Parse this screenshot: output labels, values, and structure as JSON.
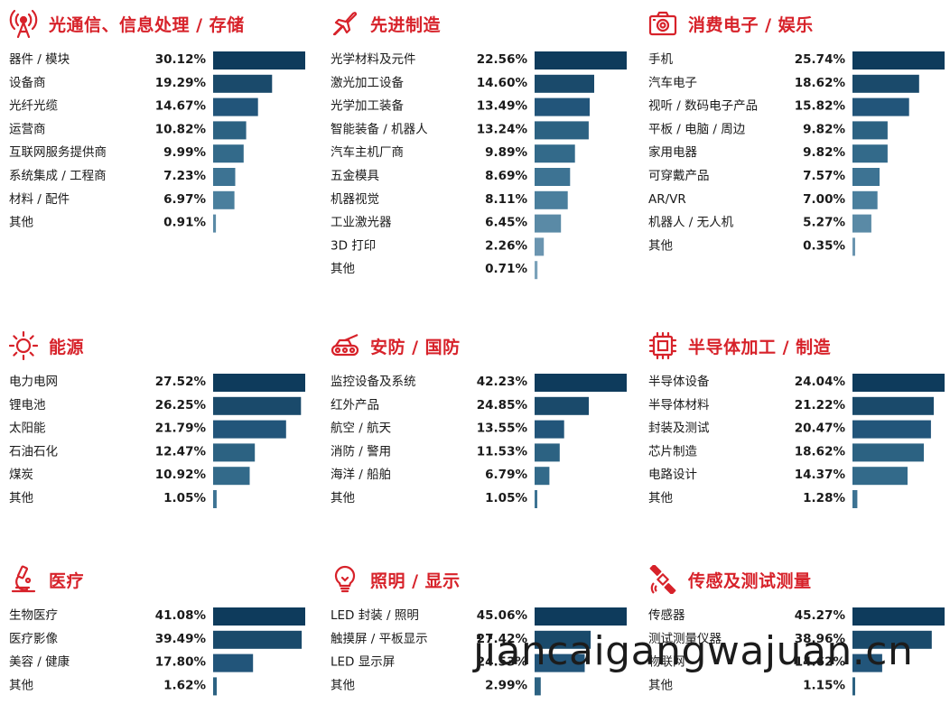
{
  "colors": {
    "title": "#d7222a",
    "bar_palette": [
      "#0e3b5c",
      "#1a4a6b",
      "#22557a",
      "#2c6282",
      "#336a8a",
      "#3d7393",
      "#4a7f9d",
      "#5a8aa6",
      "#6b95b0",
      "#7ba2ba"
    ]
  },
  "watermark": "jiancaigangwajuan.cn",
  "panels": [
    {
      "id": "optical",
      "icon": "antenna-icon",
      "title": "光通信、信息处理 / 存储"
    },
    {
      "id": "manufacturing",
      "icon": "airplane-icon",
      "title": "先进制造"
    },
    {
      "id": "consumer",
      "icon": "camera-icon",
      "title": "消费电子 / 娱乐"
    },
    {
      "id": "energy",
      "icon": "sun-icon",
      "title": "能源"
    },
    {
      "id": "security",
      "icon": "tank-icon",
      "title": "安防 / 国防"
    },
    {
      "id": "semiconductor",
      "icon": "chip-icon",
      "title": "半导体加工 / 制造"
    },
    {
      "id": "medical",
      "icon": "microscope-icon",
      "title": "医疗"
    },
    {
      "id": "lighting",
      "icon": "lightbulb-icon",
      "title": "照明 / 显示"
    },
    {
      "id": "sensing",
      "icon": "satellite-icon",
      "title": "传感及测试测量"
    }
  ],
  "chart_data": [
    {
      "type": "bar",
      "orientation": "horizontal",
      "categories": [
        "器件 / 模块",
        "设备商",
        "光纤光缆",
        "运营商",
        "互联网服务提供商",
        "系统集成 / 工程商",
        "材料 / 配件",
        "其他"
      ],
      "values": [
        30.12,
        19.29,
        14.67,
        10.82,
        9.99,
        7.23,
        6.97,
        0.91
      ],
      "labels": [
        "30.12%",
        "19.29%",
        "14.67%",
        "10.82%",
        "9.99%",
        "7.23%",
        "6.97%",
        "0.91%"
      ]
    },
    {
      "type": "bar",
      "orientation": "horizontal",
      "categories": [
        "光学材料及元件",
        "激光加工设备",
        "光学加工装备",
        "智能装备 / 机器人",
        "汽车主机厂商",
        "五金模具",
        "机器视觉",
        "工业激光器",
        "3D 打印",
        "其他"
      ],
      "values": [
        22.56,
        14.6,
        13.49,
        13.24,
        9.89,
        8.69,
        8.11,
        6.45,
        2.26,
        0.71
      ],
      "labels": [
        "22.56%",
        "14.60%",
        "13.49%",
        "13.24%",
        "9.89%",
        "8.69%",
        "8.11%",
        "6.45%",
        "2.26%",
        "0.71%"
      ]
    },
    {
      "type": "bar",
      "orientation": "horizontal",
      "categories": [
        "手机",
        "汽车电子",
        "视听 / 数码电子产品",
        "平板 / 电脑 / 周边",
        "家用电器",
        "可穿戴产品",
        "AR/VR",
        "机器人 / 无人机",
        "其他"
      ],
      "values": [
        25.74,
        18.62,
        15.82,
        9.82,
        9.82,
        7.57,
        7.0,
        5.27,
        0.35
      ],
      "labels": [
        "25.74%",
        "18.62%",
        "15.82%",
        "9.82%",
        "9.82%",
        "7.57%",
        "7.00%",
        "5.27%",
        "0.35%"
      ]
    },
    {
      "type": "bar",
      "orientation": "horizontal",
      "categories": [
        "电力电网",
        "锂电池",
        "太阳能",
        "石油石化",
        "煤炭",
        "其他"
      ],
      "values": [
        27.52,
        26.25,
        21.79,
        12.47,
        10.92,
        1.05
      ],
      "labels": [
        "27.52%",
        "26.25%",
        "21.79%",
        "12.47%",
        "10.92%",
        "1.05%"
      ]
    },
    {
      "type": "bar",
      "orientation": "horizontal",
      "categories": [
        "监控设备及系统",
        "红外产品",
        "航空 / 航天",
        "消防 / 警用",
        "海洋 / 船舶",
        "其他"
      ],
      "values": [
        42.23,
        24.85,
        13.55,
        11.53,
        6.79,
        1.05
      ],
      "labels": [
        "42.23%",
        "24.85%",
        "13.55%",
        "11.53%",
        "6.79%",
        "1.05%"
      ]
    },
    {
      "type": "bar",
      "orientation": "horizontal",
      "categories": [
        "半导体设备",
        "半导体材料",
        "封装及测试",
        "芯片制造",
        "电路设计",
        "其他"
      ],
      "values": [
        24.04,
        21.22,
        20.47,
        18.62,
        14.37,
        1.28
      ],
      "labels": [
        "24.04%",
        "21.22%",
        "20.47%",
        "18.62%",
        "14.37%",
        "1.28%"
      ]
    },
    {
      "type": "bar",
      "orientation": "horizontal",
      "categories": [
        "生物医疗",
        "医疗影像",
        "美容 / 健康",
        "其他"
      ],
      "values": [
        41.08,
        39.49,
        17.8,
        1.62
      ],
      "labels": [
        "41.08%",
        "39.49%",
        "17.80%",
        "1.62%"
      ]
    },
    {
      "type": "bar",
      "orientation": "horizontal",
      "categories": [
        "LED 封装 / 照明",
        "触摸屏 / 平板显示",
        "LED 显示屏",
        "其他"
      ],
      "values": [
        45.06,
        27.42,
        24.53,
        2.99
      ],
      "labels": [
        "45.06%",
        "27.42%",
        "24.53%",
        "2.99%"
      ]
    },
    {
      "type": "bar",
      "orientation": "horizontal",
      "categories": [
        "传感器",
        "测试测量仪器",
        "物联网",
        "其他"
      ],
      "values": [
        45.27,
        38.96,
        14.62,
        1.15
      ],
      "labels": [
        "45.27%",
        "38.96%",
        "14.62%",
        "1.15%"
      ]
    }
  ]
}
